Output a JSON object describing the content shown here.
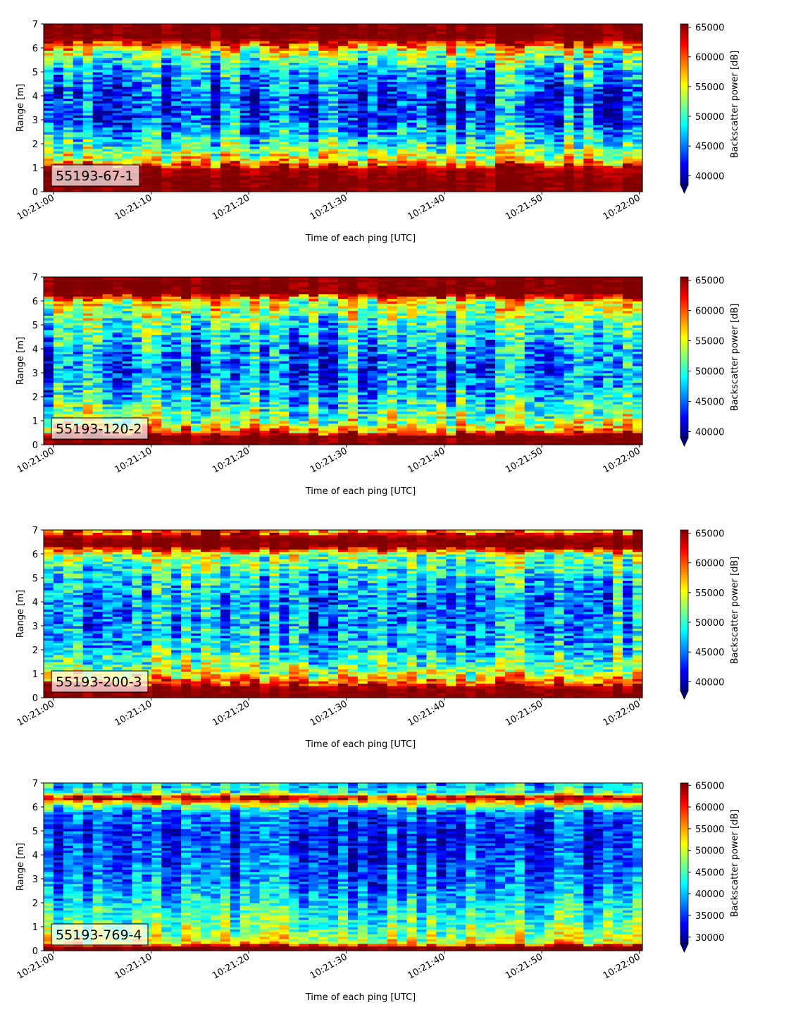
{
  "figure": {
    "xlabel": "Time of each ping [UTC]",
    "ylabel": "Range [m]",
    "colorbar_label": "Backscatter power [dB]"
  },
  "colors": {
    "jet_low": "#00007f",
    "jet_high": "#7f0000",
    "label_box_border": "#000000"
  },
  "chart_data": [
    {
      "type": "heatmap",
      "panel_label": "55193-67-1",
      "xlabel": "Time of each ping [UTC]",
      "ylabel": "Range [m]",
      "x_ticks": [
        "10:21:00",
        "10:21:10",
        "10:21:20",
        "10:21:30",
        "10:21:40",
        "10:21:50",
        "10:22:00"
      ],
      "y_ticks": [
        0,
        1,
        2,
        3,
        4,
        5,
        6,
        7
      ],
      "xlim_seconds": [
        -1,
        60.3
      ],
      "ylim": [
        0,
        7
      ],
      "colorbar_label": "Backscatter power [dB]",
      "colorbar_ticks": [
        40000,
        45000,
        50000,
        55000,
        60000,
        65000
      ],
      "clim": [
        38500,
        65535
      ],
      "extend": "min",
      "profile": {
        "range_m": [
          0,
          0.25,
          0.5,
          1.0,
          1.3,
          2.0,
          3.0,
          4.0,
          5.0,
          5.8,
          6.4,
          7.0
        ],
        "power": [
          65535,
          65535,
          65535,
          64000,
          56000,
          50000,
          44000,
          43500,
          47000,
          53000,
          65535,
          65535
        ]
      },
      "annotations": []
    },
    {
      "type": "heatmap",
      "panel_label": "55193-120-2",
      "xlabel": "Time of each ping [UTC]",
      "ylabel": "Range [m]",
      "x_ticks": [
        "10:21:00",
        "10:21:10",
        "10:21:20",
        "10:21:30",
        "10:21:40",
        "10:21:50",
        "10:22:00"
      ],
      "y_ticks": [
        0,
        1,
        2,
        3,
        4,
        5,
        6,
        7
      ],
      "xlim_seconds": [
        -1,
        60.3
      ],
      "ylim": [
        0,
        7
      ],
      "colorbar_label": "Backscatter power [dB]",
      "colorbar_ticks": [
        40000,
        45000,
        50000,
        55000,
        60000,
        65000
      ],
      "clim": [
        39000,
        65535
      ],
      "extend": "min",
      "profile": {
        "range_m": [
          0,
          0.15,
          0.4,
          0.6,
          1.0,
          2.0,
          3.0,
          4.0,
          5.0,
          6.0,
          6.3,
          7.0
        ],
        "power": [
          65535,
          65535,
          65535,
          58000,
          53000,
          48000,
          45000,
          46000,
          50000,
          55000,
          65535,
          65535
        ]
      },
      "annotations": []
    },
    {
      "type": "heatmap",
      "panel_label": "55193-200-3",
      "xlabel": "Time of each ping [UTC]",
      "ylabel": "Range [m]",
      "x_ticks": [
        "10:21:00",
        "10:21:10",
        "10:21:20",
        "10:21:30",
        "10:21:40",
        "10:21:50",
        "10:22:00"
      ],
      "y_ticks": [
        0,
        1,
        2,
        3,
        4,
        5,
        6,
        7
      ],
      "xlim_seconds": [
        -1,
        60.3
      ],
      "ylim": [
        0,
        7
      ],
      "colorbar_label": "Backscatter power [dB]",
      "colorbar_ticks": [
        40000,
        45000,
        50000,
        55000,
        60000,
        65000
      ],
      "clim": [
        38500,
        65535
      ],
      "extend": "min",
      "profile": {
        "range_m": [
          0,
          0.2,
          0.5,
          0.8,
          1.3,
          2.0,
          3.0,
          4.0,
          5.0,
          6.0,
          6.3,
          6.7,
          7.0
        ],
        "power": [
          65535,
          65535,
          64000,
          57000,
          52000,
          48000,
          46000,
          45500,
          48000,
          53000,
          65535,
          65535,
          58000
        ]
      },
      "annotations": []
    },
    {
      "type": "heatmap",
      "panel_label": "55193-769-4",
      "xlabel": "Time of each ping [UTC]",
      "ylabel": "Range [m]",
      "x_ticks": [
        "10:21:00",
        "10:21:10",
        "10:21:20",
        "10:21:30",
        "10:21:40",
        "10:21:50",
        "10:22:00"
      ],
      "y_ticks": [
        0,
        1,
        2,
        3,
        4,
        5,
        6,
        7
      ],
      "xlim_seconds": [
        -1,
        60.3
      ],
      "ylim": [
        0,
        7
      ],
      "colorbar_label": "Backscatter power [dB]",
      "colorbar_ticks": [
        30000,
        35000,
        40000,
        45000,
        50000,
        55000,
        60000,
        65000
      ],
      "clim": [
        28500,
        65535
      ],
      "extend": "min",
      "profile": {
        "range_m": [
          0,
          0.2,
          0.3,
          0.6,
          1.0,
          2.0,
          3.0,
          4.0,
          5.0,
          5.8,
          6.2,
          6.4,
          6.6,
          7.0
        ],
        "power": [
          65535,
          65535,
          52000,
          48000,
          46000,
          41000,
          37000,
          35000,
          34000,
          37000,
          52000,
          65535,
          44000,
          40000
        ]
      },
      "annotations": []
    }
  ]
}
